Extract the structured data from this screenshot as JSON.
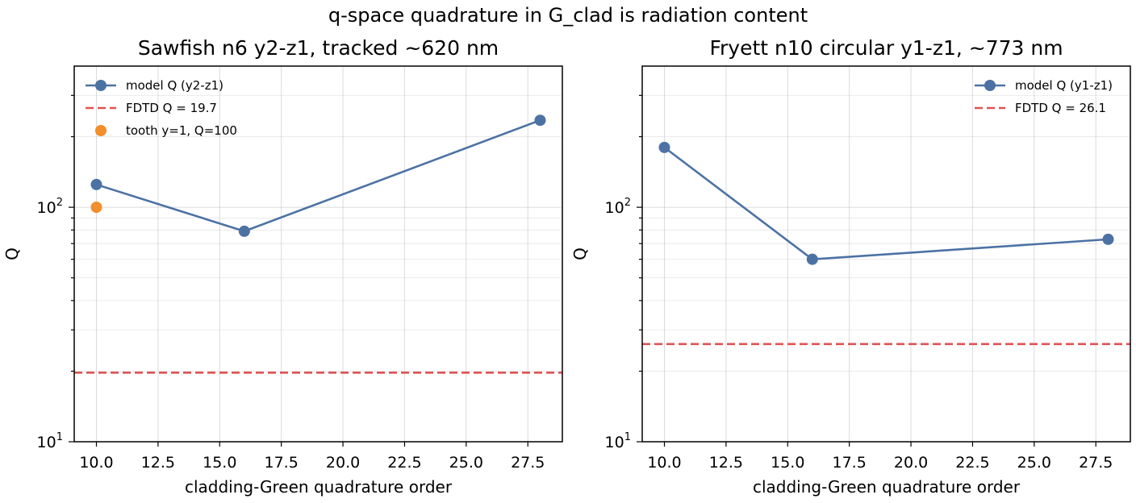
{
  "figure": {
    "suptitle": "q-space quadrature in G_clad is radiation content"
  },
  "chart_data": [
    {
      "type": "line",
      "title": "Sawfish n6 y2-z1, tracked ~620 nm",
      "xlabel": "cladding-Green quadrature order",
      "ylabel": "Q",
      "xlim": [
        9.1,
        28.9
      ],
      "ylim": [
        10,
        400
      ],
      "yscale": "log",
      "grid": true,
      "legend_position": "upper-left",
      "x_ticks": [
        "10.0",
        "12.5",
        "15.0",
        "17.5",
        "20.0",
        "22.5",
        "25.0",
        "27.5"
      ],
      "y_ticks": [
        {
          "base": "10",
          "exp": "1"
        },
        {
          "base": "10",
          "exp": "2"
        }
      ],
      "series": [
        {
          "name": "model Q (y2-z1)",
          "kind": "line-marker",
          "color": "#4c72a4",
          "x": [
            10,
            16,
            28
          ],
          "y": [
            125,
            79,
            235
          ]
        },
        {
          "name": "FDTD Q = 19.7",
          "kind": "hline",
          "color": "#e05252",
          "y": 19.7
        },
        {
          "name": "tooth y=1, Q=100",
          "kind": "point",
          "color": "#f28e2b",
          "x": [
            10
          ],
          "y": [
            100
          ]
        }
      ]
    },
    {
      "type": "line",
      "title": "Fryett n10 circular y1-z1, ~773 nm",
      "xlabel": "cladding-Green quadrature order",
      "ylabel": "Q",
      "xlim": [
        9.1,
        28.9
      ],
      "ylim": [
        10,
        400
      ],
      "yscale": "log",
      "grid": true,
      "legend_position": "upper-right",
      "x_ticks": [
        "10.0",
        "12.5",
        "15.0",
        "17.5",
        "20.0",
        "22.5",
        "25.0",
        "27.5"
      ],
      "y_ticks": [
        {
          "base": "10",
          "exp": "1"
        },
        {
          "base": "10",
          "exp": "2"
        }
      ],
      "series": [
        {
          "name": "model Q (y1-z1)",
          "kind": "line-marker",
          "color": "#4c72a4",
          "x": [
            10,
            16,
            28
          ],
          "y": [
            180,
            60,
            73
          ]
        },
        {
          "name": "FDTD Q = 26.1",
          "kind": "hline",
          "color": "#e05252",
          "y": 26.1
        }
      ]
    }
  ]
}
